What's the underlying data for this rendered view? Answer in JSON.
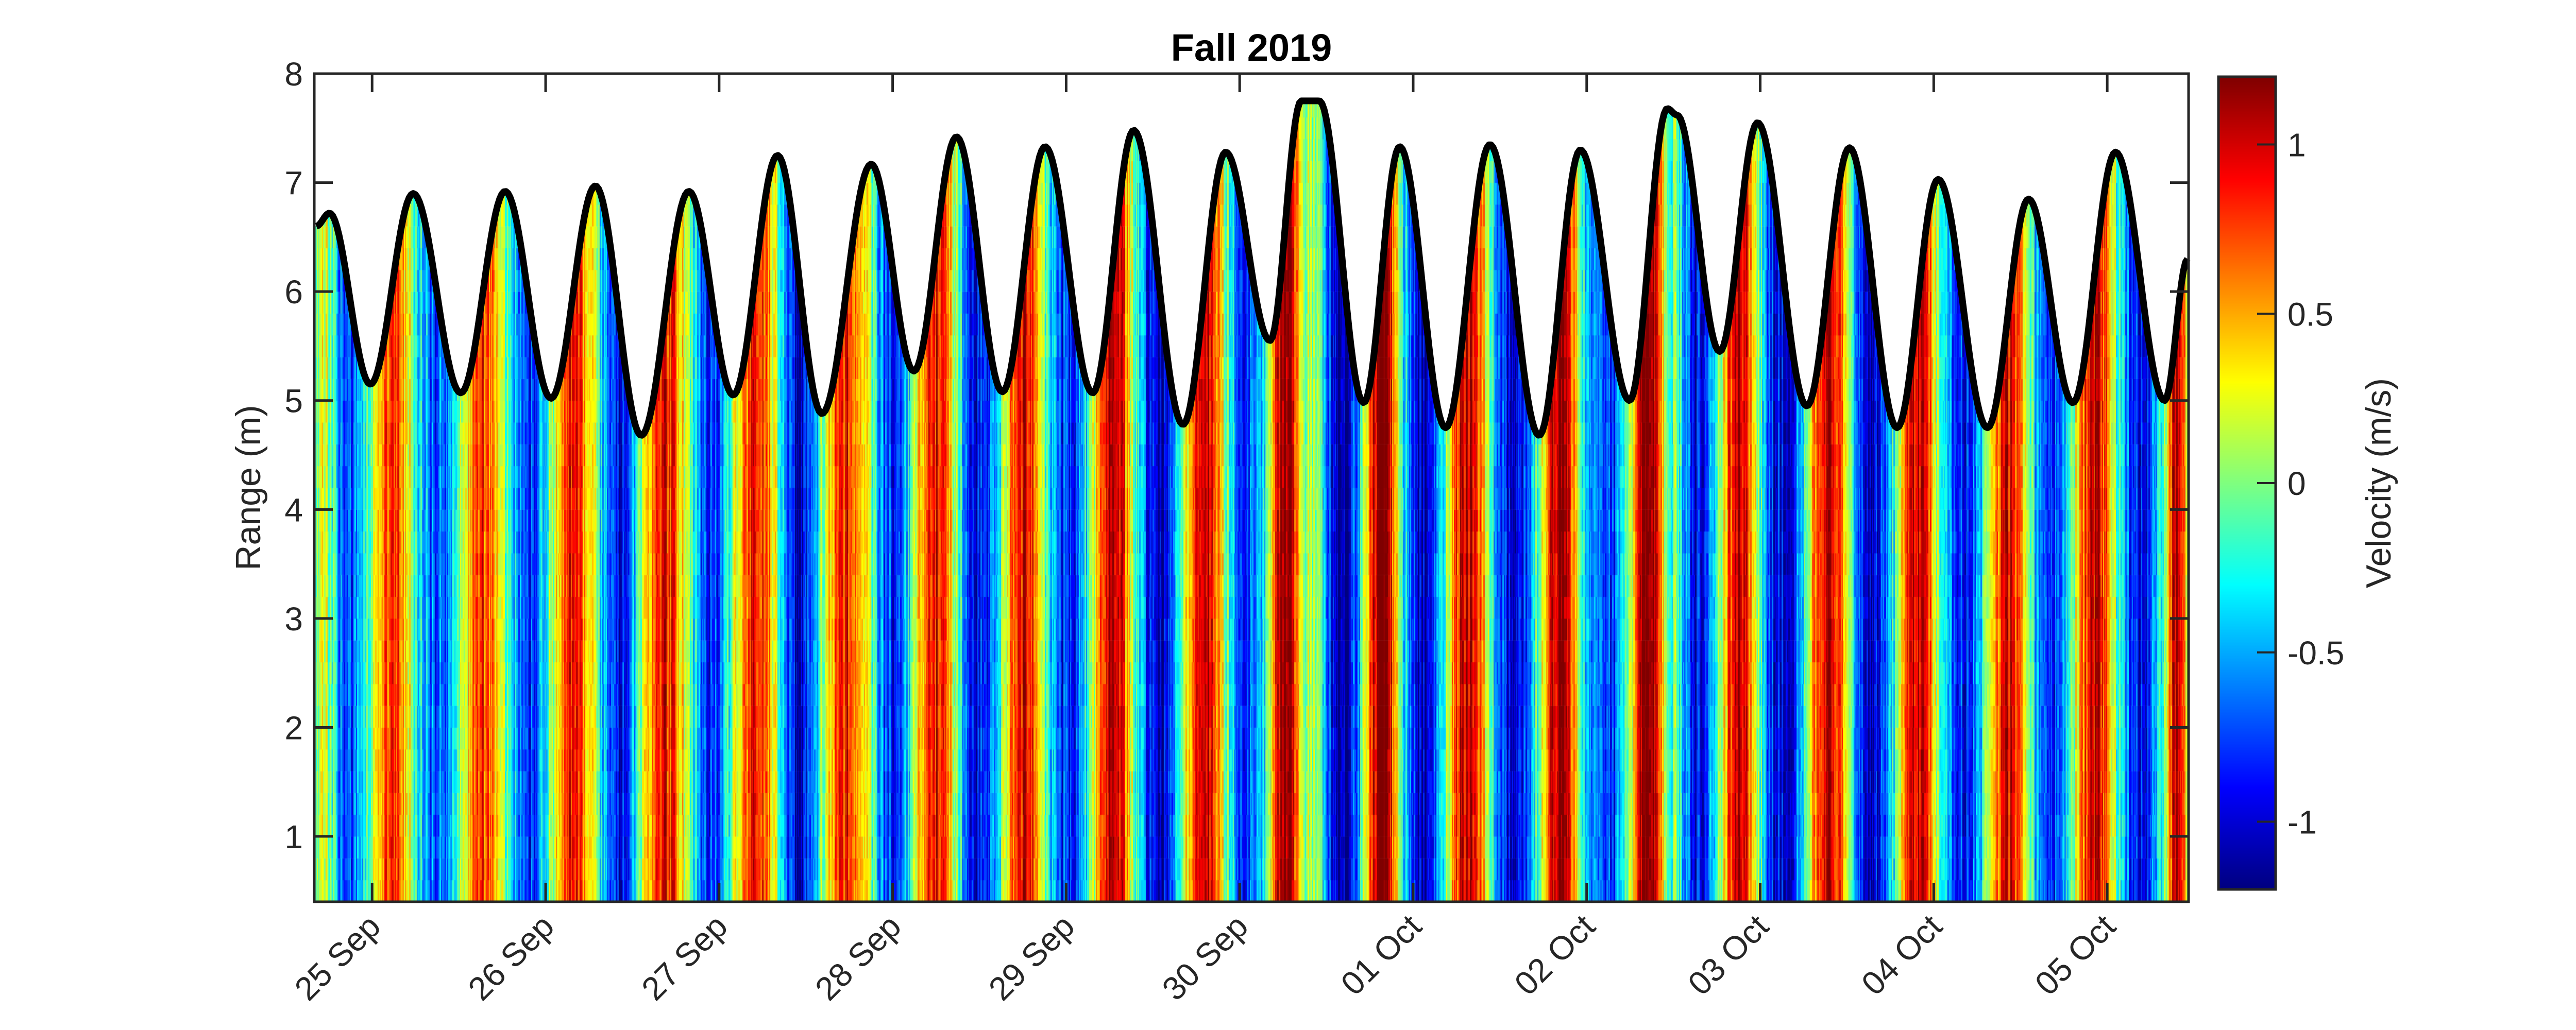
{
  "chart_data": {
    "type": "heatmap",
    "title": "Fall 2019",
    "ylabel": "Range (m)",
    "xlabel": "",
    "xlim": [
      "2019-09-24 16:00",
      "2019-10-05 11:15"
    ],
    "ylim": [
      0.4,
      8
    ],
    "yticks": [
      1,
      2,
      3,
      4,
      5,
      6,
      7,
      8
    ],
    "xticks": [
      {
        "date": "2019-09-25 00:00",
        "label": "25 Sep"
      },
      {
        "date": "2019-09-26 00:00",
        "label": "26 Sep"
      },
      {
        "date": "2019-09-27 00:00",
        "label": "27 Sep"
      },
      {
        "date": "2019-09-28 00:00",
        "label": "28 Sep"
      },
      {
        "date": "2019-09-29 00:00",
        "label": "29 Sep"
      },
      {
        "date": "2019-09-30 00:00",
        "label": "30 Sep"
      },
      {
        "date": "2019-10-01 00:00",
        "label": "01 Oct"
      },
      {
        "date": "2019-10-02 00:00",
        "label": "02 Oct"
      },
      {
        "date": "2019-10-03 00:00",
        "label": "03 Oct"
      },
      {
        "date": "2019-10-04 00:00",
        "label": "04 Oct"
      },
      {
        "date": "2019-10-05 00:00",
        "label": "05 Oct"
      }
    ],
    "colormap": "jet",
    "colorbar": {
      "label": "Velocity (m/s)",
      "clim": [
        -1.2,
        1.2
      ],
      "ticks": [
        {
          "value": 1,
          "label": "1"
        },
        {
          "value": 0.5,
          "label": "0.5"
        },
        {
          "value": 0,
          "label": "0"
        },
        {
          "value": -0.5,
          "label": "-0.5"
        },
        {
          "value": -1,
          "label": "-1"
        }
      ],
      "location": "right"
    },
    "surface_line": {
      "color": "#000000",
      "points": [
        [
          "2019-09-24 16:17",
          6.6
        ],
        [
          "2019-09-24 18:06",
          6.72
        ],
        [
          "2019-09-24 23:46",
          5.15
        ],
        [
          "2019-09-25 05:41",
          6.9
        ],
        [
          "2019-09-25 12:16",
          5.07
        ],
        [
          "2019-09-25 18:24",
          6.92
        ],
        [
          "2019-09-26 00:45",
          5.02
        ],
        [
          "2019-09-26 06:53",
          6.97
        ],
        [
          "2019-09-26 13:14",
          4.68
        ],
        [
          "2019-09-26 19:49",
          6.92
        ],
        [
          "2019-09-27 01:57",
          5.05
        ],
        [
          "2019-09-27 08:05",
          7.25
        ],
        [
          "2019-09-27 14:13",
          4.88
        ],
        [
          "2019-09-27 21:02",
          7.17
        ],
        [
          "2019-09-28 02:56",
          5.27
        ],
        [
          "2019-09-28 08:50",
          7.42
        ],
        [
          "2019-09-28 15:11",
          5.08
        ],
        [
          "2019-09-28 21:05",
          7.33
        ],
        [
          "2019-09-29 03:40",
          5.07
        ],
        [
          "2019-09-29 09:21",
          7.48
        ],
        [
          "2019-09-29 16:10",
          4.78
        ],
        [
          "2019-09-29 22:04",
          7.28
        ],
        [
          "2019-09-30 04:12",
          5.55
        ],
        [
          "2019-09-30 08:31",
          7.75
        ],
        [
          "2019-09-30 11:01",
          7.75
        ],
        [
          "2019-09-30 17:09",
          4.98
        ],
        [
          "2019-09-30 22:08",
          7.33
        ],
        [
          "2019-10-01 04:29",
          4.75
        ],
        [
          "2019-10-01 10:37",
          7.35
        ],
        [
          "2019-10-01 17:26",
          4.68
        ],
        [
          "2019-10-01 23:07",
          7.3
        ],
        [
          "2019-10-02 05:56",
          5.0
        ],
        [
          "2019-10-02 11:09",
          7.68
        ],
        [
          "2019-10-02 12:30",
          7.62
        ],
        [
          "2019-10-02 18:24",
          5.45
        ],
        [
          "2019-10-02 23:38",
          7.55
        ],
        [
          "2019-10-03 06:27",
          4.95
        ],
        [
          "2019-10-03 12:21",
          7.32
        ],
        [
          "2019-10-03 18:56",
          4.75
        ],
        [
          "2019-10-04 00:37",
          7.03
        ],
        [
          "2019-10-04 07:26",
          4.75
        ],
        [
          "2019-10-04 13:07",
          6.85
        ],
        [
          "2019-10-04 19:15",
          4.98
        ],
        [
          "2019-10-05 01:09",
          7.28
        ],
        [
          "2019-10-05 07:57",
          5.0
        ],
        [
          "2019-10-05 11:08",
          6.3
        ]
      ]
    },
    "grid": false
  }
}
